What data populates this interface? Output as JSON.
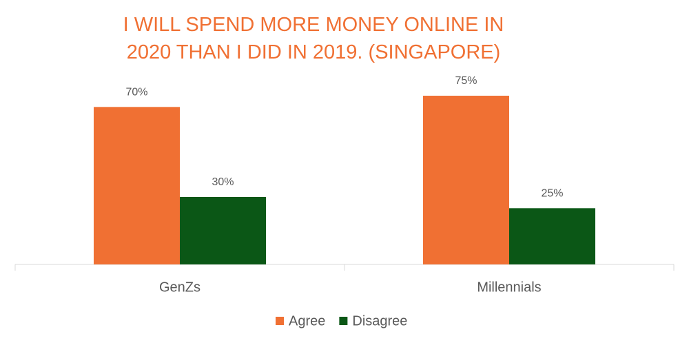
{
  "chart_data": {
    "type": "bar",
    "title": "I WILL SPEND MORE MONEY ONLINE IN 2020 THAN I DID IN 2019. (SINGAPORE)",
    "categories": [
      "GenZs",
      "Millennials"
    ],
    "series": [
      {
        "name": "Agree",
        "color": "#f07033",
        "values": [
          70,
          75
        ],
        "value_labels": [
          "70%",
          "75%"
        ]
      },
      {
        "name": "Disagree",
        "color": "#0b5716",
        "values": [
          30,
          25
        ],
        "value_labels": [
          "30%",
          "25%"
        ]
      }
    ],
    "legend": "bottom"
  }
}
